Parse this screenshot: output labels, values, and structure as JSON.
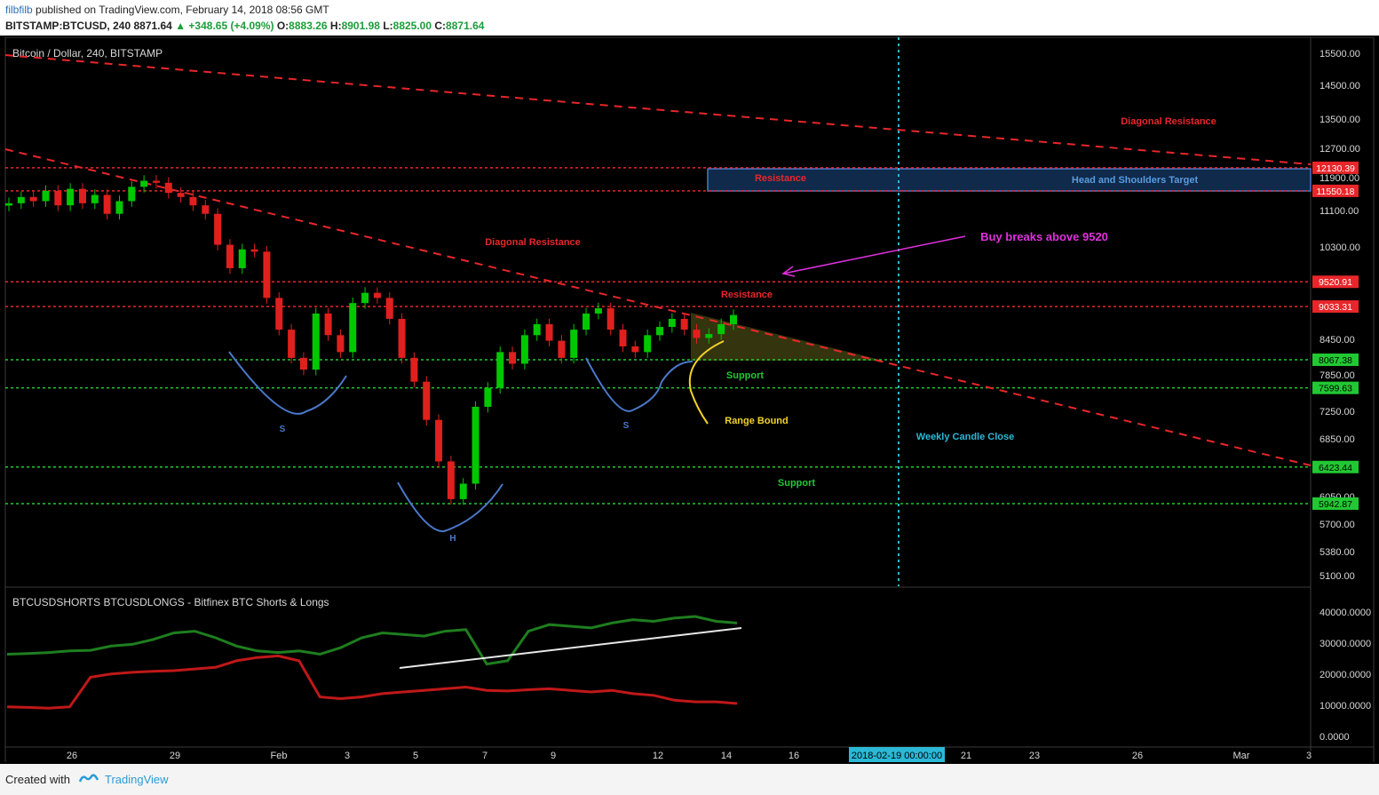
{
  "header": {
    "user": "filbfilb",
    "published": "published on TradingView.com, February 14, 2018 08:56 GMT",
    "symbol": "BITSTAMP:BTCUSD, 240",
    "last": "8871.64",
    "change": "▲ +348.65 (+4.09%)",
    "o_label": "O:",
    "o": "8883.26",
    "h_label": "H:",
    "h": "8901.98",
    "l_label": "L:",
    "l": "8825.00",
    "c_label": "C:",
    "c": "8871.64"
  },
  "footer": {
    "created_with": "Created with",
    "brand": "TradingView"
  },
  "colors": {
    "background": "#000000",
    "up_candle": "#00c800",
    "down_candle": "#e0201e",
    "resistance": "#e8262a",
    "support": "#22c833",
    "pattern": "#4a78c9",
    "range": "#f0d22a",
    "buy_arrow": "#e030e0",
    "weekly_line": "#2ab8d6",
    "shorts": "#c01818",
    "longs": "#1e7e1e"
  },
  "chart_data": [
    {
      "type": "candlestick",
      "title": "Bitcoin / Dollar, 240, BITSTAMP",
      "y_scale": "log",
      "ylim": [
        5000,
        15700
      ],
      "y_ticks": [
        "15500.00",
        "14500.00",
        "13500.00",
        "12700.00",
        "11900.00",
        "11100.00",
        "10300.00",
        "8450.00",
        "7850.00",
        "7250.00",
        "6850.00",
        "6050.00",
        "5700.00",
        "5380.00",
        "5100.00"
      ],
      "x_ticks": [
        "26",
        "29",
        "Feb",
        "3",
        "5",
        "7",
        "9",
        "12",
        "14",
        "16",
        "21",
        "23",
        "26",
        "Mar",
        "3"
      ],
      "x_cursor_label": "2018-02-19 00:00:00",
      "levels": [
        {
          "price": "12130.39",
          "kind": "resistance"
        },
        {
          "price": "11550.18",
          "kind": "resistance"
        },
        {
          "price": "9520.91",
          "kind": "resistance"
        },
        {
          "price": "9033.31",
          "kind": "resistance"
        },
        {
          "price": "8067.38",
          "kind": "support"
        },
        {
          "price": "7599.63",
          "kind": "support"
        },
        {
          "price": "6423.44",
          "kind": "support"
        },
        {
          "price": "5942.87",
          "kind": "support"
        }
      ],
      "annotations": {
        "diag_res_1": "Diagonal Resistance",
        "diag_res_2": "Diagonal Resistance",
        "resistance_box": "Resistance",
        "hs_target": "Head and Shoulders Target",
        "buy": "Buy breaks above 9520",
        "resistance_2": "Resistance",
        "support_1": "Support",
        "support_2": "Support",
        "range": "Range Bound",
        "weekly": "Weekly Candle Close",
        "s_left": "S",
        "head": "H",
        "s_right": "S"
      },
      "close_series": [
        11250,
        11400,
        11300,
        11550,
        11200,
        11600,
        11250,
        11450,
        11000,
        11300,
        11650,
        11800,
        11750,
        11500,
        11400,
        11200,
        11000,
        10300,
        9800,
        10200,
        10150,
        9200,
        8600,
        8100,
        7900,
        8900,
        8500,
        8200,
        9100,
        9300,
        9200,
        8800,
        8100,
        7700,
        7100,
        6500,
        6000,
        6200,
        7300,
        7600,
        8200,
        8000,
        8500,
        8700,
        8400,
        8100,
        8600,
        8900,
        9000,
        8600,
        8300,
        8200,
        8500,
        8650,
        8800,
        8600,
        8450,
        8520,
        8700,
        8871.64
      ]
    },
    {
      "type": "line",
      "title": "BTCUSDSHORTS BTCUSDLONGS - Bitfinex BTC Shorts & Longs",
      "ylim": [
        0,
        42000
      ],
      "y_ticks": [
        "40000.0000",
        "30000.0000",
        "20000.0000",
        "10000.0000",
        "0.0000"
      ],
      "series": [
        {
          "values": [
            25000,
            25200,
            25500,
            26000,
            26200,
            27500,
            28000,
            29500,
            31500,
            32000,
            30000,
            27500,
            26000,
            25500,
            26000,
            25000,
            27000,
            30000,
            31500,
            31000,
            30500,
            32000,
            32500,
            22000,
            23000,
            32000,
            34000,
            33500,
            33000,
            34500,
            35500,
            35000,
            36000,
            36500,
            35000,
            34500
          ]
        },
        {
          "values": [
            9000,
            8800,
            8600,
            9000,
            18000,
            19000,
            19500,
            19800,
            20000,
            20500,
            21000,
            23000,
            24000,
            24500,
            23000,
            12000,
            11500,
            12000,
            13000,
            13500,
            14000,
            14500,
            15000,
            14000,
            13800,
            14200,
            14500,
            14000,
            13500,
            14000,
            13000,
            12500,
            11000,
            10500,
            10500,
            10000
          ]
        }
      ]
    }
  ]
}
